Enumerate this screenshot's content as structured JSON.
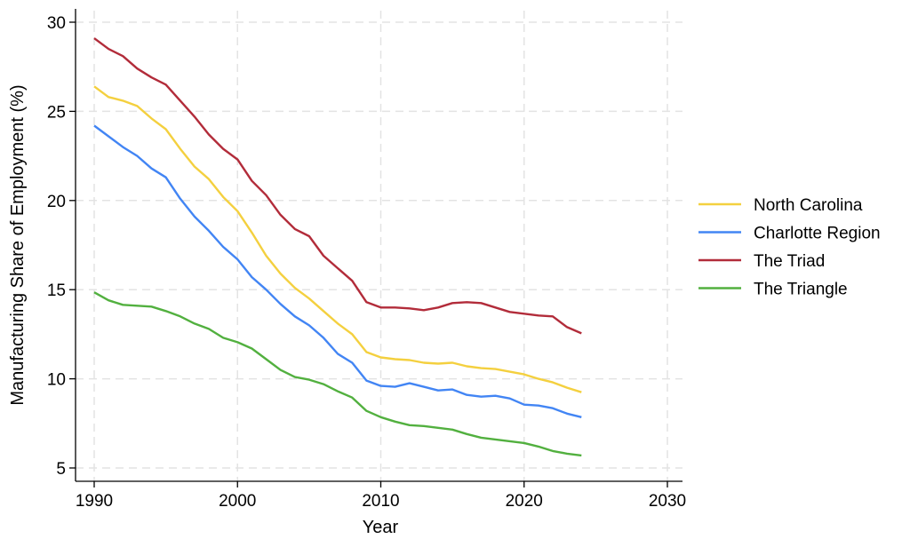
{
  "chart_data": {
    "type": "line",
    "title": "",
    "xlabel": "Year",
    "ylabel": "Manufacturing Share of Employment (%)",
    "xlim": [
      1990,
      2030
    ],
    "ylim": [
      5,
      30
    ],
    "xticks": [
      1990,
      2000,
      2010,
      2020,
      2030
    ],
    "yticks": [
      5,
      10,
      15,
      20,
      25,
      30
    ],
    "grid": true,
    "legend_position": "right",
    "x": [
      1990,
      1991,
      1992,
      1993,
      1994,
      1995,
      1996,
      1997,
      1998,
      1999,
      2000,
      2001,
      2002,
      2003,
      2004,
      2005,
      2006,
      2007,
      2008,
      2009,
      2010,
      2011,
      2012,
      2013,
      2014,
      2015,
      2016,
      2017,
      2018,
      2019,
      2020,
      2021,
      2022,
      2023,
      2024
    ],
    "series": [
      {
        "name": "North Carolina",
        "color": "#f4d03f",
        "values": [
          26.4,
          25.8,
          25.6,
          25.3,
          24.6,
          24.0,
          22.9,
          21.9,
          21.2,
          20.2,
          19.4,
          18.2,
          16.9,
          15.9,
          15.1,
          14.5,
          13.8,
          13.1,
          12.5,
          11.5,
          11.2,
          11.1,
          11.05,
          10.9,
          10.85,
          10.9,
          10.7,
          10.6,
          10.55,
          10.4,
          10.25,
          10.0,
          9.8,
          9.5,
          9.25
        ]
      },
      {
        "name": "Charlotte Region",
        "color": "#4285f4",
        "values": [
          24.2,
          23.6,
          23.0,
          22.5,
          21.8,
          21.3,
          20.1,
          19.1,
          18.3,
          17.4,
          16.7,
          15.7,
          15.0,
          14.2,
          13.5,
          13.0,
          12.3,
          11.4,
          10.9,
          9.9,
          9.6,
          9.55,
          9.75,
          9.55,
          9.35,
          9.4,
          9.1,
          9.0,
          9.05,
          8.9,
          8.55,
          8.5,
          8.35,
          8.05,
          7.85
        ]
      },
      {
        "name": "The Triad",
        "color": "#b22c3a",
        "values": [
          29.1,
          28.5,
          28.1,
          27.4,
          26.9,
          26.5,
          25.6,
          24.7,
          23.7,
          22.9,
          22.3,
          21.1,
          20.3,
          19.2,
          18.4,
          18.0,
          16.9,
          16.2,
          15.5,
          14.3,
          14.0,
          14.0,
          13.95,
          13.85,
          14.0,
          14.25,
          14.3,
          14.25,
          14.0,
          13.75,
          13.65,
          13.55,
          13.5,
          12.9,
          12.55
        ]
      },
      {
        "name": "The Triangle",
        "color": "#52b03f",
        "values": [
          14.85,
          14.4,
          14.15,
          14.1,
          14.05,
          13.8,
          13.5,
          13.1,
          12.8,
          12.3,
          12.05,
          11.7,
          11.1,
          10.5,
          10.1,
          9.95,
          9.7,
          9.3,
          8.95,
          8.2,
          7.85,
          7.6,
          7.4,
          7.35,
          7.25,
          7.15,
          6.9,
          6.7,
          6.6,
          6.5,
          6.4,
          6.2,
          5.95,
          5.8,
          5.7
        ]
      }
    ]
  }
}
